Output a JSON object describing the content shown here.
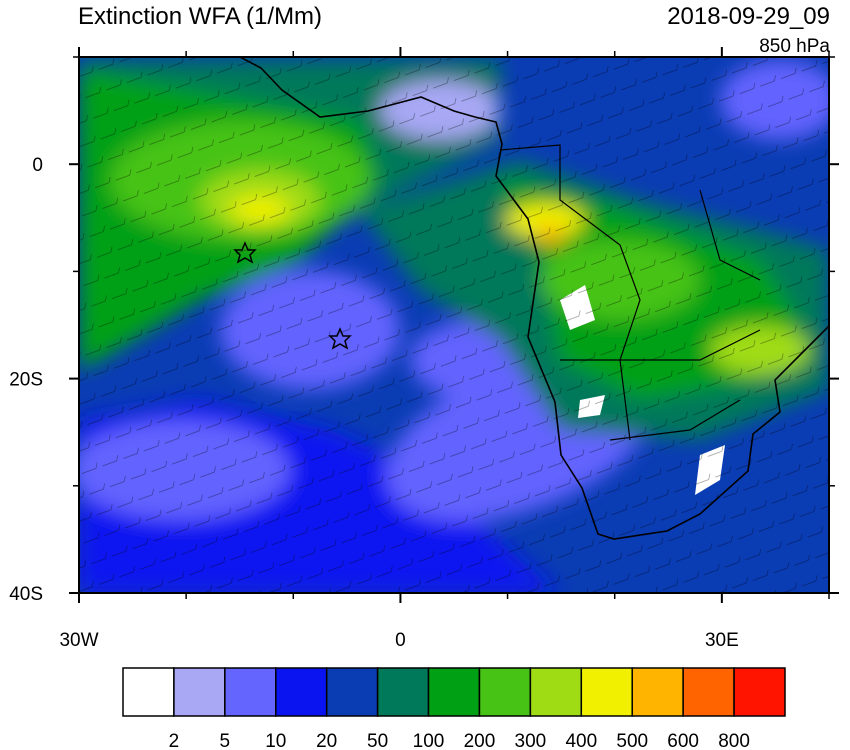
{
  "title": "Extinction WFA (1/Mm)",
  "date": "2018-09-29_09",
  "level": "850 hPa",
  "map": {
    "xlim": [
      -30,
      40
    ],
    "ylim": [
      -40,
      10
    ],
    "xticks": [
      {
        "value": -30,
        "label": "30W"
      },
      0,
      {
        "value": 30,
        "label": "30E"
      }
    ],
    "yticks": [
      0,
      {
        "value": -20,
        "label": "20S"
      },
      {
        "value": -40,
        "label": "40S"
      }
    ],
    "xticks_minor": [
      -20,
      -10,
      10,
      20,
      40
    ],
    "yticks_minor": [
      10,
      -10,
      -30
    ]
  },
  "colorbar": {
    "levels": [
      2,
      5,
      10,
      20,
      50,
      100,
      200,
      300,
      400,
      500,
      600,
      800
    ],
    "colors": [
      "#ffffff",
      "#a8a8f5",
      "#6464ff",
      "#0a14f0",
      "#0a3cb4",
      "#00785a",
      "#00a014",
      "#46c314",
      "#a0dc14",
      "#f0f000",
      "#ffb400",
      "#ff6400",
      "#ff1400"
    ]
  }
}
